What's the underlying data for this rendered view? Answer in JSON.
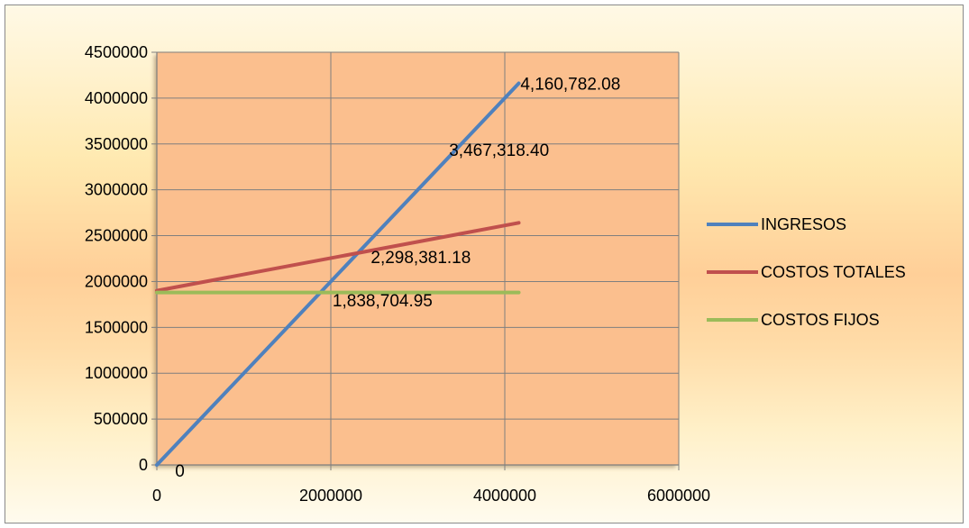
{
  "chart_data": {
    "type": "line",
    "title": "",
    "xlabel": "",
    "ylabel": "",
    "xlim": [
      0,
      6000000
    ],
    "ylim": [
      0,
      4500000
    ],
    "xticks": [
      0,
      2000000,
      4000000,
      6000000
    ],
    "yticks": [
      0,
      500000,
      1000000,
      1500000,
      2000000,
      2500000,
      3000000,
      3500000,
      4000000,
      4500000
    ],
    "xtick_labels": [
      "0",
      "2000000",
      "4000000",
      "6000000"
    ],
    "ytick_labels": [
      "0",
      "500000",
      "1000000",
      "1500000",
      "2000000",
      "2500000",
      "3000000",
      "3500000",
      "4000000",
      "4500000"
    ],
    "grid": true,
    "legend_position": "right",
    "plot_background": "#fbbf8e",
    "series": [
      {
        "name": "INGRESOS",
        "color": "#4f81bd",
        "x": [
          0,
          4160782.08
        ],
        "y": [
          0,
          4160782.08
        ]
      },
      {
        "name": "COSTOS TOTALES",
        "color": "#c0504d",
        "x": [
          0,
          4160782.08
        ],
        "y": [
          1900000,
          2640000
        ]
      },
      {
        "name": "COSTOS FIJOS",
        "color": "#9bbb59",
        "x": [
          0,
          4160782.08
        ],
        "y": [
          1880000,
          1880000
        ]
      }
    ],
    "data_labels": [
      {
        "text": "4,160,782.08",
        "x": 4180000,
        "y": 4160000
      },
      {
        "text": "3,467,318.40",
        "x": 3360000,
        "y": 3440000
      },
      {
        "text": "2,298,381.18",
        "x": 2460000,
        "y": 2270000
      },
      {
        "text": "1,838,704.95",
        "x": 2020000,
        "y": 1800000
      },
      {
        "text": "0",
        "x": 210000,
        "y": -60000
      }
    ]
  }
}
